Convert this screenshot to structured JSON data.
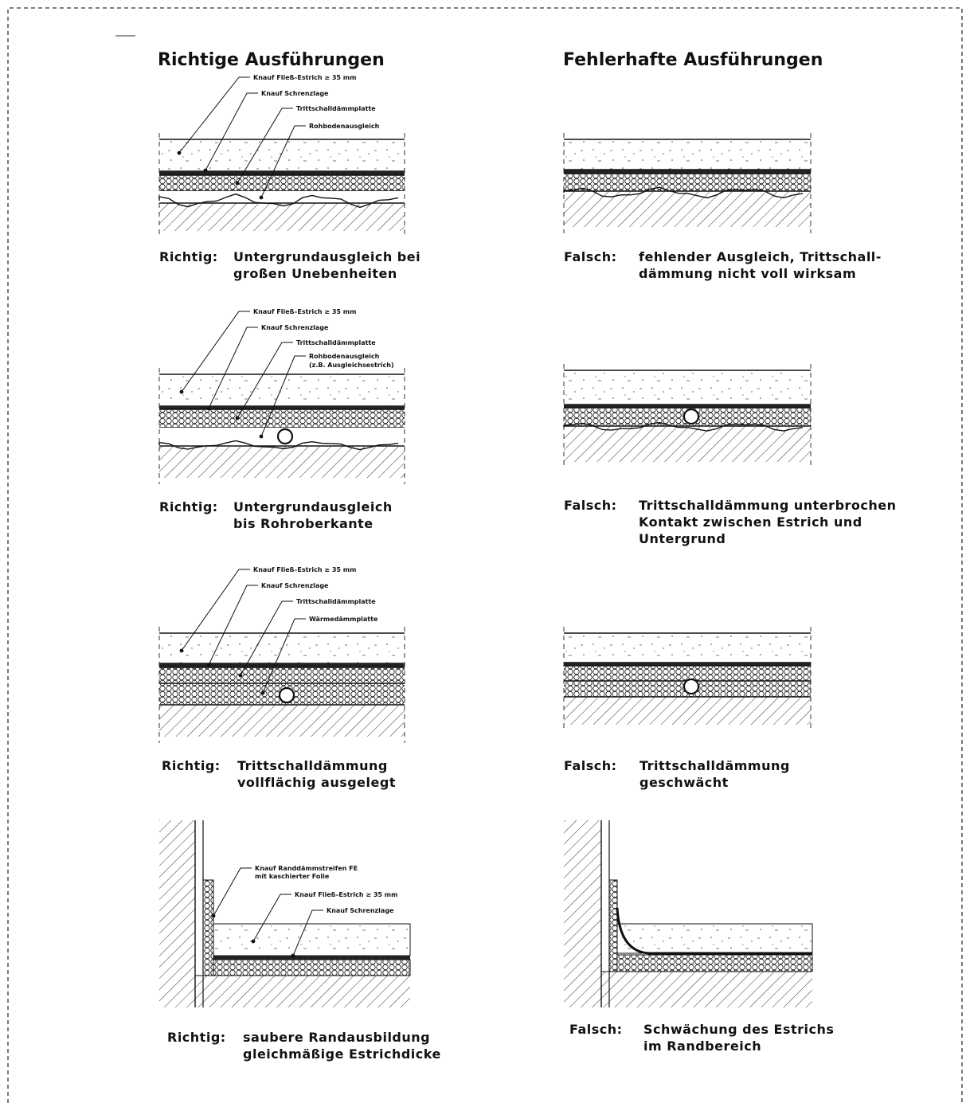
{
  "headings": {
    "left": "Richtige Ausführungen",
    "right": "Fehlerhafte Ausführungen"
  },
  "panels": [
    {
      "left": {
        "labels": [
          "Knauf Fließ–Estrich ≥ 35 mm",
          "Knauf Schrenzlage",
          "Trittschalldämmplatte",
          "Rohbodenausgleich"
        ],
        "caption": {
          "prefix": "Richtig:",
          "lines": [
            "Untergrundausgleich bei",
            "großen Unebenheiten"
          ]
        }
      },
      "right": {
        "caption": {
          "prefix": "Falsch:",
          "lines": [
            "fehlender Ausgleich, Trittschall-",
            "dämmung nicht voll wirksam"
          ]
        }
      }
    },
    {
      "left": {
        "labels": [
          "Knauf Fließ–Estrich ≥ 35 mm",
          "Knauf Schrenzlage",
          "Trittschalldämmplatte",
          "Rohbodenausgleich",
          "(z.B. Ausgleichsestrich)"
        ],
        "caption": {
          "prefix": "Richtig:",
          "lines": [
            "Untergrundausgleich",
            "bis Rohroberkante"
          ]
        }
      },
      "right": {
        "caption": {
          "prefix": "Falsch:",
          "lines": [
            "Trittschalldämmung unterbrochen",
            "Kontakt zwischen Estrich und",
            "Untergrund"
          ]
        }
      }
    },
    {
      "left": {
        "labels": [
          "Knauf Fließ–Estrich ≥ 35 mm",
          "Knauf Schrenzlage",
          "Trittschalldämmplatte",
          "Wärmedämmplatte"
        ],
        "caption": {
          "prefix": "Richtig:",
          "lines": [
            "Trittschalldämmung",
            "vollflächig ausgelegt"
          ]
        }
      },
      "right": {
        "caption": {
          "prefix": "Falsch:",
          "lines": [
            "Trittschalldämmung",
            "geschwächt"
          ]
        }
      }
    },
    {
      "left": {
        "labels": [
          "Knauf Randdämmstreifen FE",
          "mit kaschierter Folie",
          "Knauf Fließ–Estrich ≥ 35 mm",
          "Knauf Schrenzlage"
        ],
        "caption": {
          "prefix": "Richtig:",
          "lines": [
            "saubere Randausbildung",
            "gleichmäßige Estrichdicke"
          ]
        }
      },
      "right": {
        "caption": {
          "prefix": "Falsch:",
          "lines": [
            "Schwächung des Estrichs",
            "im Randbereich"
          ]
        }
      }
    }
  ]
}
